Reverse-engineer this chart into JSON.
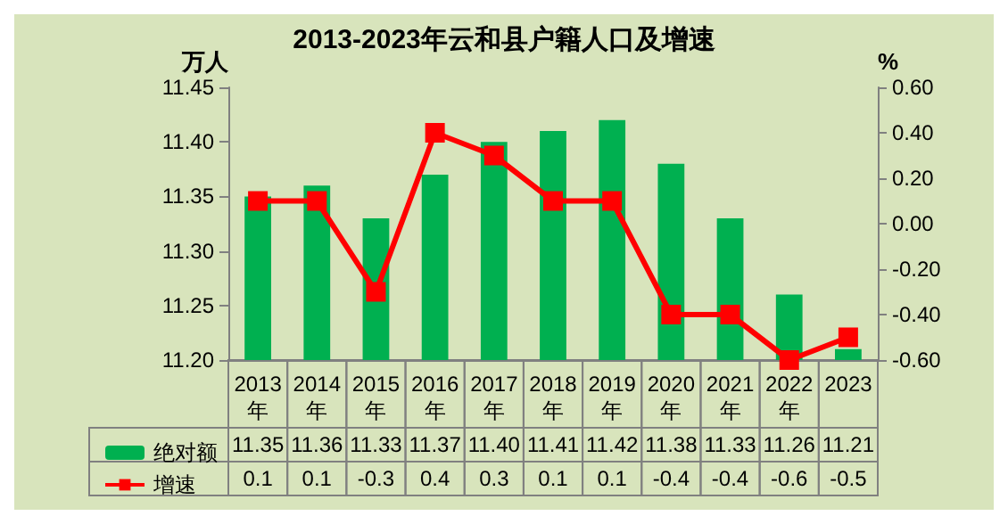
{
  "chart_data": {
    "type": "bar",
    "title": "2013-2023年云和县户籍人口及增速",
    "ylabel": "万人",
    "y2label": "%",
    "categories": [
      "2013年",
      "2014年",
      "2015年",
      "2016年",
      "2017年",
      "2018年",
      "2019年",
      "2020年",
      "2021年",
      "2022年",
      "2023"
    ],
    "series": [
      {
        "name": "绝对额",
        "color": "#00b050",
        "values": [
          11.35,
          11.36,
          11.33,
          11.37,
          11.4,
          11.41,
          11.42,
          11.38,
          11.33,
          11.26,
          11.21
        ],
        "value_labels": [
          "11.35",
          "11.36",
          "11.33",
          "11.37",
          "11.40",
          "11.41",
          "11.42",
          "11.38",
          "11.33",
          "11.26",
          "11.21"
        ]
      },
      {
        "name": "增速",
        "type": "line",
        "axis": "y2",
        "color": "#ff0000",
        "marker": "square",
        "values": [
          0.1,
          0.1,
          -0.3,
          0.4,
          0.3,
          0.1,
          0.1,
          -0.4,
          -0.4,
          -0.6,
          -0.5
        ],
        "value_labels": [
          "0.1",
          "0.1",
          "-0.3",
          "0.4",
          "0.3",
          "0.1",
          "0.1",
          "-0.4",
          "-0.4",
          "-0.6",
          "-0.5"
        ]
      }
    ],
    "ylim": [
      11.2,
      11.45
    ],
    "yticks": [
      {
        "value": 11.2,
        "label": "11.20"
      },
      {
        "value": 11.25,
        "label": "11.25"
      },
      {
        "value": 11.3,
        "label": "11.30"
      },
      {
        "value": 11.35,
        "label": "11.35"
      },
      {
        "value": 11.4,
        "label": "11.40"
      },
      {
        "value": 11.45,
        "label": "11.45"
      }
    ],
    "y2lim": [
      -0.6,
      0.6
    ],
    "y2ticks": [
      {
        "value": -0.6,
        "label": "-0.60"
      },
      {
        "value": -0.4,
        "label": "-0.40"
      },
      {
        "value": -0.2,
        "label": "-0.20"
      },
      {
        "value": 0,
        "label": "0.00"
      },
      {
        "value": 0.2,
        "label": "0.20"
      },
      {
        "value": 0.4,
        "label": "0.40"
      },
      {
        "value": 0.6,
        "label": "0.60"
      }
    ],
    "legend": "bottom",
    "grid": false
  }
}
